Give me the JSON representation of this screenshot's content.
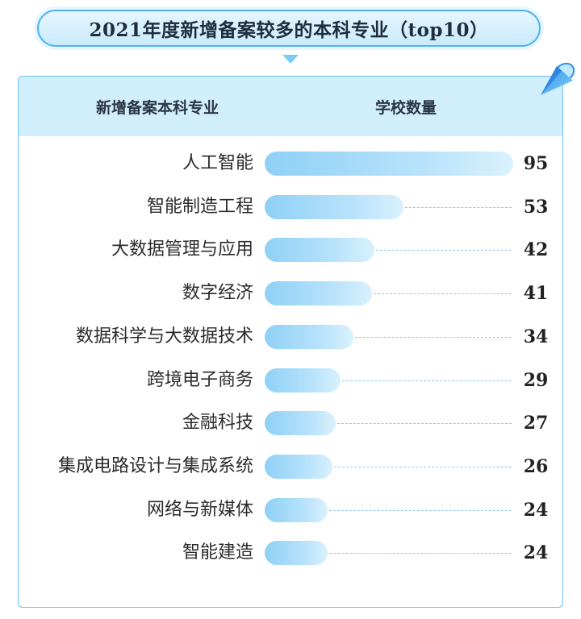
{
  "title": "2021年度新增备案较多的本科专业（top10）",
  "header": {
    "col_major": "新增备案本科专业",
    "col_count": "学校数量"
  },
  "colors": {
    "accent": "#4eb3ee",
    "header_bg": "#d1eefc",
    "bar_start": "#8fd0f6",
    "bar_end": "#daf1fd"
  },
  "icons": {
    "corner": "blue-cone-icon",
    "title_pointer": "triangle-down-icon"
  },
  "chart_data": {
    "type": "bar",
    "orientation": "horizontal",
    "title": "2021年度新增备案较多的本科专业（top10）",
    "xlabel": "学校数量",
    "ylabel": "新增备案本科专业",
    "xlim": [
      0,
      95
    ],
    "grid": false,
    "legend": "none",
    "categories": [
      "人工智能",
      "智能制造工程",
      "大数据管理与应用",
      "数字经济",
      "数据科学与大数据技术",
      "跨境电子商务",
      "金融科技",
      "集成电路设计与集成系统",
      "网络与新媒体",
      "智能建造"
    ],
    "values": [
      95,
      53,
      42,
      41,
      34,
      29,
      27,
      26,
      24,
      24
    ]
  }
}
